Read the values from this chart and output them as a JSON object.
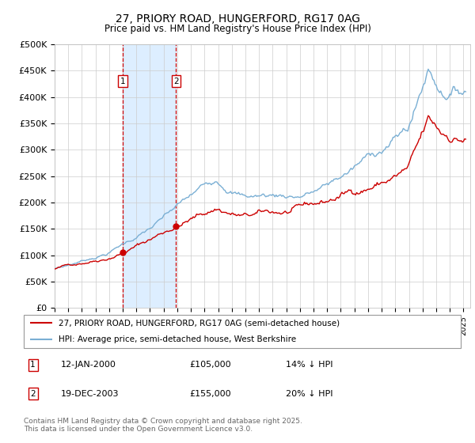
{
  "title1": "27, PRIORY ROAD, HUNGERFORD, RG17 0AG",
  "title2": "Price paid vs. HM Land Registry's House Price Index (HPI)",
  "ylabel_ticks": [
    "£0",
    "£50K",
    "£100K",
    "£150K",
    "£200K",
    "£250K",
    "£300K",
    "£350K",
    "£400K",
    "£450K",
    "£500K"
  ],
  "ylim": [
    0,
    500000
  ],
  "ytick_vals": [
    0,
    50000,
    100000,
    150000,
    200000,
    250000,
    300000,
    350000,
    400000,
    450000,
    500000
  ],
  "legend_line1": "27, PRIORY ROAD, HUNGERFORD, RG17 0AG (semi-detached house)",
  "legend_line2": "HPI: Average price, semi-detached house, West Berkshire",
  "sale1_label": "1",
  "sale1_date": "12-JAN-2000",
  "sale1_price": "£105,000",
  "sale1_hpi": "14% ↓ HPI",
  "sale2_label": "2",
  "sale2_date": "19-DEC-2003",
  "sale2_price": "£155,000",
  "sale2_hpi": "20% ↓ HPI",
  "footer": "Contains HM Land Registry data © Crown copyright and database right 2025.\nThis data is licensed under the Open Government Licence v3.0.",
  "line_color_red": "#cc0000",
  "line_color_blue": "#7aafd4",
  "vline_color": "#cc0000",
  "shade_color": "#ddeeff",
  "x_tick_years": [
    1995,
    1996,
    1997,
    1998,
    1999,
    2000,
    2001,
    2002,
    2003,
    2004,
    2005,
    2006,
    2007,
    2008,
    2009,
    2010,
    2011,
    2012,
    2013,
    2014,
    2015,
    2016,
    2017,
    2018,
    2019,
    2020,
    2021,
    2022,
    2023,
    2024,
    2025
  ]
}
